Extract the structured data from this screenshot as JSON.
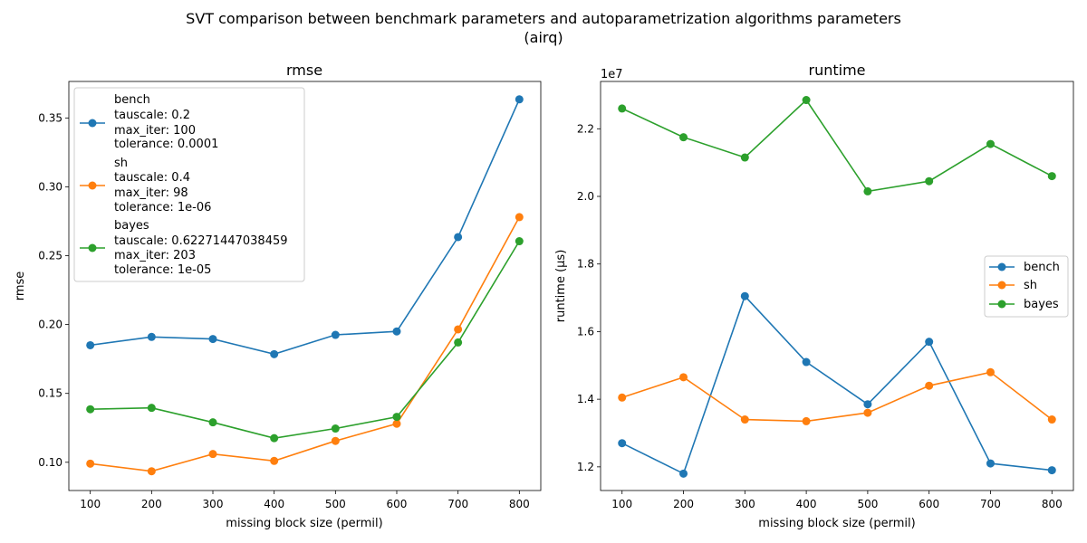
{
  "figure": {
    "suptitle_line1": "SVT comparison between benchmark parameters and autoparametrization algorithms parameters",
    "suptitle_line2": "(airq)"
  },
  "colors": {
    "bench": "#1f77b4",
    "sh": "#ff7f0e",
    "bayes": "#2ca02c"
  },
  "chart_data": [
    {
      "type": "line",
      "title": "rmse",
      "xlabel": "missing block size (permil)",
      "ylabel": "rmse",
      "x": [
        100,
        200,
        300,
        400,
        500,
        600,
        700,
        800
      ],
      "xlim": [
        65,
        835
      ],
      "ylim": [
        0.0795,
        0.3765
      ],
      "xticks": [
        100,
        200,
        300,
        400,
        500,
        600,
        700,
        800
      ],
      "yticks": [
        0.1,
        0.15,
        0.2,
        0.25,
        0.3,
        0.35
      ],
      "ytick_labels": [
        "0.10",
        "0.15",
        "0.20",
        "0.25",
        "0.30",
        "0.35"
      ],
      "legend_position": "upper left",
      "series": [
        {
          "name": "bench",
          "color": "#1f77b4",
          "legend_lines": [
            "bench",
            "tauscale: 0.2",
            "max_iter: 100",
            "tolerance: 0.0001"
          ],
          "values": [
            0.185,
            0.191,
            0.1895,
            0.1785,
            0.1925,
            0.195,
            0.2635,
            0.3635
          ]
        },
        {
          "name": "sh",
          "color": "#ff7f0e",
          "legend_lines": [
            "sh",
            "tauscale: 0.4",
            "max_iter: 98",
            "tolerance: 1e-06"
          ],
          "values": [
            0.099,
            0.0935,
            0.106,
            0.101,
            0.1155,
            0.128,
            0.1965,
            0.278
          ]
        },
        {
          "name": "bayes",
          "color": "#2ca02c",
          "legend_lines": [
            "bayes",
            "tauscale: 0.62271447038459",
            "max_iter: 203",
            "tolerance: 1e-05"
          ],
          "values": [
            0.1385,
            0.1395,
            0.129,
            0.1175,
            0.1245,
            0.133,
            0.187,
            0.2605
          ]
        }
      ]
    },
    {
      "type": "line",
      "title": "runtime",
      "xlabel": "missing block size (permil)",
      "ylabel": "runtime (µs)",
      "offset_text": "1e7",
      "x": [
        100,
        200,
        300,
        400,
        500,
        600,
        700,
        800
      ],
      "xlim": [
        65,
        835
      ],
      "ylim": [
        11300000,
        23400000
      ],
      "xticks": [
        100,
        200,
        300,
        400,
        500,
        600,
        700,
        800
      ],
      "yticks": [
        12000000,
        14000000,
        16000000,
        18000000,
        20000000,
        22000000
      ],
      "ytick_labels": [
        "1.2",
        "1.4",
        "1.6",
        "1.8",
        "2.0",
        "2.2"
      ],
      "legend_position": "center right",
      "series": [
        {
          "name": "bench",
          "color": "#1f77b4",
          "legend_lines": [
            "bench"
          ],
          "values": [
            12700000,
            11800000,
            17050000,
            15100000,
            13850000,
            15700000,
            12100000,
            11900000
          ]
        },
        {
          "name": "sh",
          "color": "#ff7f0e",
          "legend_lines": [
            "sh"
          ],
          "values": [
            14050000,
            14650000,
            13400000,
            13350000,
            13600000,
            14400000,
            14800000,
            13400000
          ]
        },
        {
          "name": "bayes",
          "color": "#2ca02c",
          "legend_lines": [
            "bayes"
          ],
          "values": [
            22600000,
            21750000,
            21150000,
            22850000,
            20150000,
            20450000,
            21550000,
            20600000
          ]
        }
      ]
    }
  ]
}
